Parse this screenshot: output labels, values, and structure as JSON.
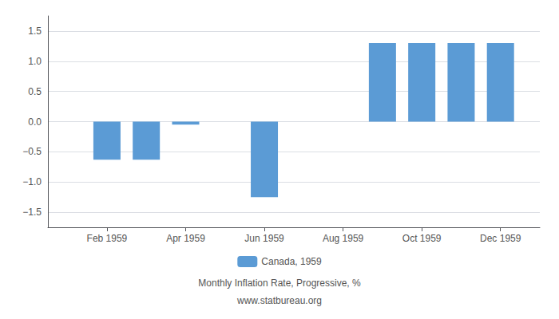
{
  "chart_data": {
    "type": "bar",
    "subtitle": "Monthly Inflation Rate, Progressive, %",
    "annotations": [
      "www.statbureau.org"
    ],
    "x": [
      2,
      3,
      4,
      6,
      9,
      10,
      11,
      12
    ],
    "series": [
      {
        "name": "Canada, 1959",
        "color": "#5B9BD5",
        "values": [
          -0.63,
          -0.63,
          -0.05,
          -1.25,
          1.3,
          1.3,
          1.3,
          1.3
        ]
      }
    ],
    "xlim": [
      0.5,
      13.0
    ],
    "xticks": [
      {
        "value": 2,
        "label": "Feb 1959"
      },
      {
        "value": 4,
        "label": "Apr 1959"
      },
      {
        "value": 6,
        "label": "Jun 1959"
      },
      {
        "value": 8,
        "label": "Aug 1959"
      },
      {
        "value": 10,
        "label": "Oct 1959"
      },
      {
        "value": 12,
        "label": "Dec 1959"
      }
    ],
    "ylim": [
      -1.75,
      1.75
    ],
    "yticks": [
      {
        "value": -1.5,
        "label": "−1.5"
      },
      {
        "value": -1.0,
        "label": "−1.0"
      },
      {
        "value": -0.5,
        "label": "−0.5"
      },
      {
        "value": 0.0,
        "label": "0.0"
      },
      {
        "value": 0.5,
        "label": "0.5"
      },
      {
        "value": 1.0,
        "label": "1.0"
      },
      {
        "value": 1.5,
        "label": "1.5"
      }
    ],
    "grid": true,
    "legend": "bottom"
  }
}
